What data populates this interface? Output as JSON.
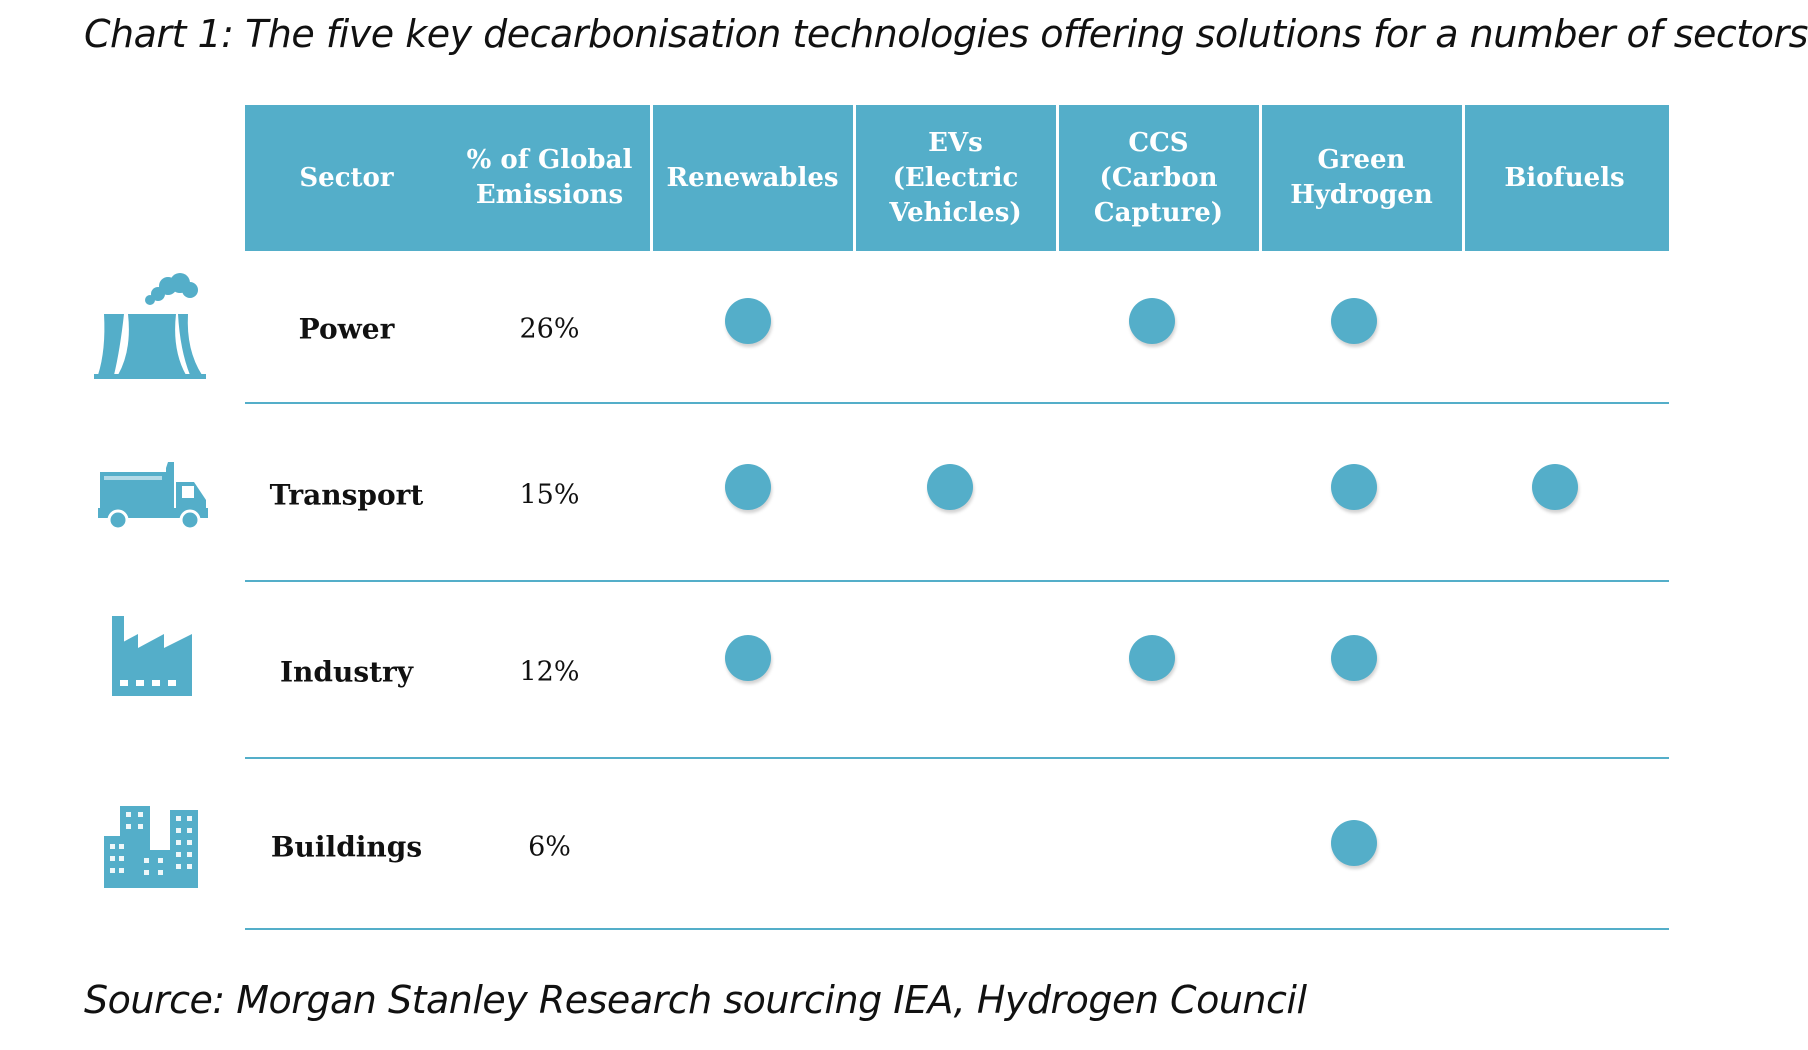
{
  "title": "Chart 1: The five key decarbonisation technologies offering solutions for a number of sectors",
  "source": "Source: Morgan Stanley Research sourcing IEA, Hydrogen Council",
  "colors": {
    "accent": "#54aec9",
    "text": "#111111",
    "header_text": "#ffffff"
  },
  "chart_data": {
    "type": "table",
    "columns": [
      "Sector",
      "% of Global\nEmissions",
      "Renewables",
      "EVs\n(Electric\nVehicles)",
      "CCS\n(Carbon\nCapture)",
      "Green\nHydrogen",
      "Biofuels"
    ],
    "technologies": [
      "Renewables",
      "EVs",
      "CCS",
      "Green Hydrogen",
      "Biofuels"
    ],
    "rows": [
      {
        "sector": "Power",
        "icon": "power-plant-icon",
        "emissions": "26%",
        "emissions_value": 26,
        "solutions": [
          true,
          false,
          true,
          true,
          false
        ]
      },
      {
        "sector": "Transport",
        "icon": "truck-icon",
        "emissions": "15%",
        "emissions_value": 15,
        "solutions": [
          true,
          true,
          false,
          true,
          true
        ]
      },
      {
        "sector": "Industry",
        "icon": "factory-icon",
        "emissions": "12%",
        "emissions_value": 12,
        "solutions": [
          true,
          false,
          true,
          true,
          false
        ]
      },
      {
        "sector": "Buildings",
        "icon": "buildings-icon",
        "emissions": "6%",
        "emissions_value": 6,
        "solutions": [
          false,
          false,
          false,
          true,
          false
        ]
      }
    ]
  }
}
